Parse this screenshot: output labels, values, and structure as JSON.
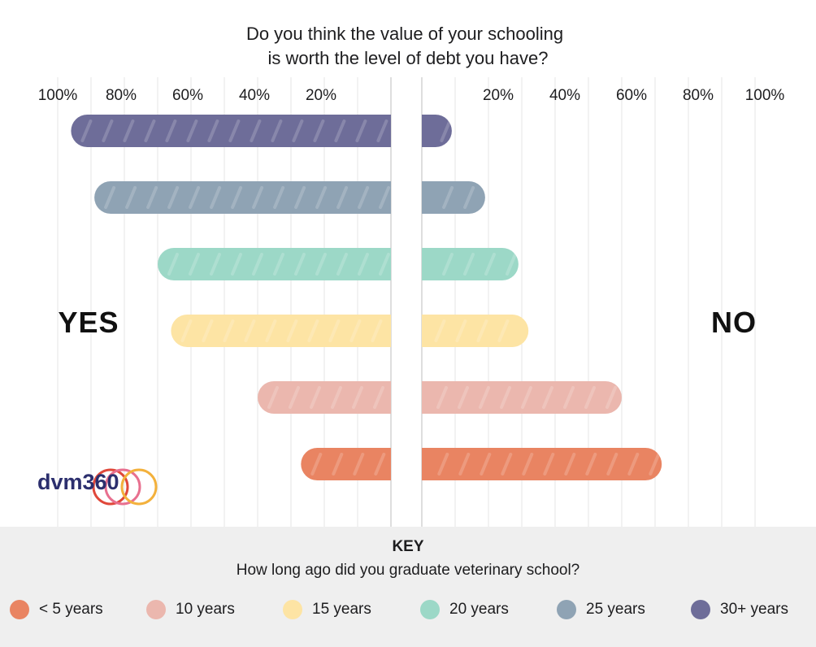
{
  "chart_data": {
    "type": "bar",
    "orientation": "horizontal-diverging",
    "title": "Do you think the value of your schooling\nis worth the level of debt you have?",
    "left_label": "YES",
    "right_label": "NO",
    "left_ticks": [
      "100%",
      "80%",
      "60%",
      "40%",
      "20%"
    ],
    "right_ticks": [
      "20%",
      "40%",
      "60%",
      "80%",
      "100%"
    ],
    "xlim": [
      0,
      100
    ],
    "grid": true,
    "series": [
      {
        "name": "30+ years",
        "color": "#6e6d99",
        "yes": 96,
        "no": 9
      },
      {
        "name": "25 years",
        "color": "#8fa3b4",
        "yes": 89,
        "no": 19
      },
      {
        "name": "20 years",
        "color": "#9cd8c7",
        "yes": 70,
        "no": 29
      },
      {
        "name": "15 years",
        "color": "#fde4a4",
        "yes": 66,
        "no": 32
      },
      {
        "name": "10 years",
        "color": "#ebb7ae",
        "yes": 40,
        "no": 60
      },
      {
        "name": "< 5 years",
        "color": "#e98462",
        "yes": 27,
        "no": 72
      }
    ]
  },
  "key": {
    "heading": "KEY",
    "question": "How long ago did you graduate veterinary school?",
    "items": [
      {
        "label": "< 5 years",
        "color": "#e98462"
      },
      {
        "label": "10 years",
        "color": "#ebb7ae"
      },
      {
        "label": "15 years",
        "color": "#fde4a4"
      },
      {
        "label": "20 years",
        "color": "#9cd8c7"
      },
      {
        "label": "25 years",
        "color": "#8fa3b4"
      },
      {
        "label": "30+ years",
        "color": "#6e6d99"
      }
    ]
  },
  "logo": {
    "text": "dvm360",
    "colors": {
      "dvm": "#2c2f6e",
      "ring1": "#e0483a",
      "ring2": "#e8708f",
      "ring3": "#f3b13c"
    }
  }
}
